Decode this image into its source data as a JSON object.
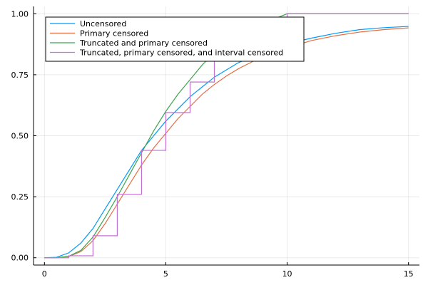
{
  "chart_data": {
    "type": "line",
    "title": "",
    "xlabel": "",
    "ylabel": "",
    "xlim": [
      -0.45,
      15.45
    ],
    "ylim": [
      -0.03,
      1.03
    ],
    "xticks": [
      0,
      5,
      10,
      15
    ],
    "yticks": [
      0.0,
      0.25,
      0.5,
      0.75,
      1.0
    ],
    "xtick_labels": [
      "0",
      "5",
      "10",
      "15"
    ],
    "ytick_labels": [
      "0.00",
      "0.25",
      "0.50",
      "0.75",
      "1.00"
    ],
    "grid": true,
    "legend_position": "top-left",
    "series": [
      {
        "name": "Uncensored",
        "color": "#009af9",
        "step": false,
        "x": [
          0,
          0.5,
          1,
          1.5,
          2,
          2.5,
          3,
          3.5,
          4,
          4.5,
          5,
          5.5,
          6,
          6.5,
          7,
          7.5,
          8,
          8.5,
          9,
          9.5,
          10,
          11,
          12,
          13,
          14,
          15
        ],
        "y": [
          0.0,
          0.002,
          0.02,
          0.06,
          0.12,
          0.2,
          0.28,
          0.36,
          0.44,
          0.5,
          0.56,
          0.61,
          0.66,
          0.7,
          0.74,
          0.77,
          0.8,
          0.82,
          0.84,
          0.86,
          0.877,
          0.9,
          0.92,
          0.935,
          0.943,
          0.948
        ]
      },
      {
        "name": "Primary censored",
        "color": "#e26f46",
        "step": false,
        "x": [
          0,
          0.5,
          1,
          1.5,
          2,
          2.5,
          3,
          3.5,
          4,
          4.5,
          5,
          5.5,
          6,
          6.5,
          7,
          7.5,
          8,
          8.5,
          9,
          9.5,
          10,
          11,
          12,
          13,
          14,
          15
        ],
        "y": [
          0.0,
          0.0,
          0.005,
          0.025,
          0.07,
          0.14,
          0.22,
          0.3,
          0.38,
          0.45,
          0.51,
          0.57,
          0.62,
          0.67,
          0.71,
          0.745,
          0.775,
          0.8,
          0.825,
          0.845,
          0.86,
          0.89,
          0.91,
          0.925,
          0.935,
          0.942
        ]
      },
      {
        "name": "Truncated and primary censored",
        "color": "#3da44d",
        "step": false,
        "x": [
          0,
          0.5,
          1,
          1.5,
          2,
          2.5,
          3,
          3.5,
          4,
          4.5,
          5,
          5.5,
          6,
          6.5,
          7,
          7.5,
          8,
          8.5,
          9,
          9.5,
          10,
          11,
          12,
          13,
          14,
          15
        ],
        "y": [
          0.0,
          0.0,
          0.006,
          0.03,
          0.085,
          0.165,
          0.25,
          0.34,
          0.43,
          0.52,
          0.6,
          0.67,
          0.73,
          0.79,
          0.84,
          0.88,
          0.91,
          0.94,
          0.96,
          0.98,
          1.0,
          1.0,
          1.0,
          1.0,
          1.0,
          1.0
        ]
      },
      {
        "name": "Truncated, primary censored, and interval censored",
        "color": "#c271d2",
        "step": true,
        "x": [
          0,
          1,
          2,
          3,
          4,
          5,
          6,
          7,
          8,
          9,
          10,
          11,
          12,
          13,
          14,
          15
        ],
        "y": [
          0.0,
          0.008,
          0.09,
          0.26,
          0.44,
          0.595,
          0.72,
          0.82,
          0.895,
          0.95,
          1.0,
          1.0,
          1.0,
          1.0,
          1.0,
          1.0
        ]
      }
    ]
  }
}
